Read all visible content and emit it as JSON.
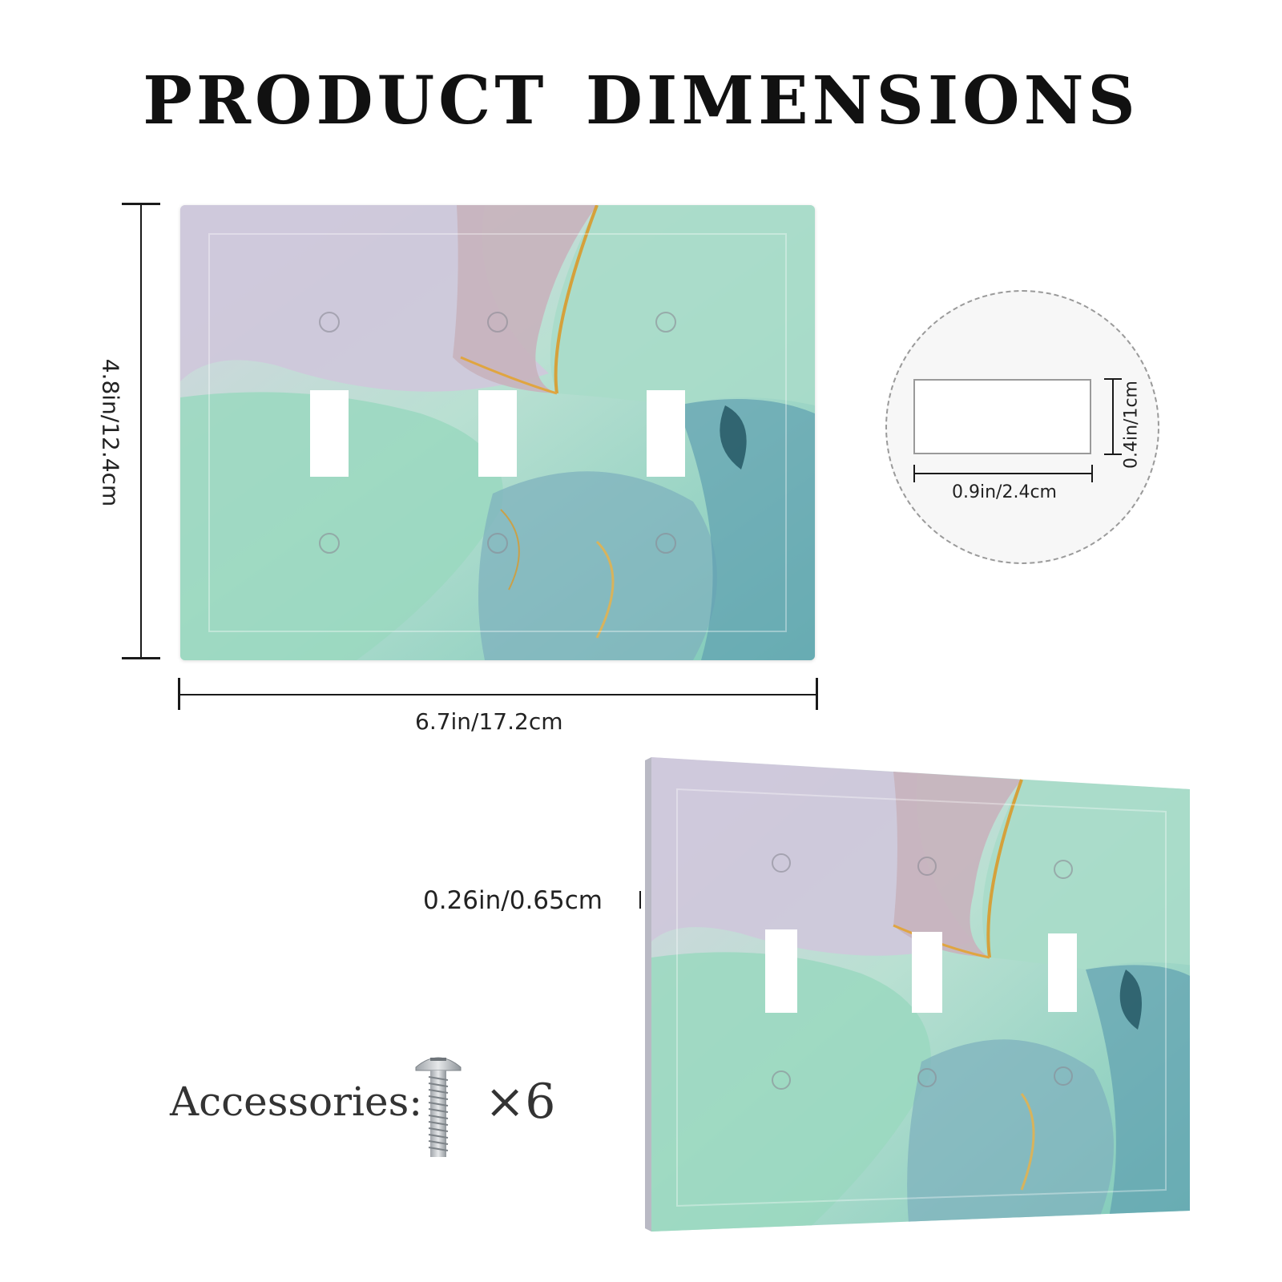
{
  "title": "PRODUCT  DIMENSIONS",
  "dimensions": {
    "height": "4.8in/12.4cm",
    "width": "6.7in/17.2cm",
    "hole_height": "0.4in/1cm",
    "hole_width": "0.9in/2.4cm",
    "thickness": "0.26in/0.65cm"
  },
  "accessories": {
    "label": "Accessories:",
    "quantity": "×6",
    "icon": "screw-icon"
  },
  "colors": {
    "lavender": "#c9c5d6",
    "mint": "#8fd3bd",
    "teal": "#4a8fa1",
    "gold": "#d99a2b"
  }
}
